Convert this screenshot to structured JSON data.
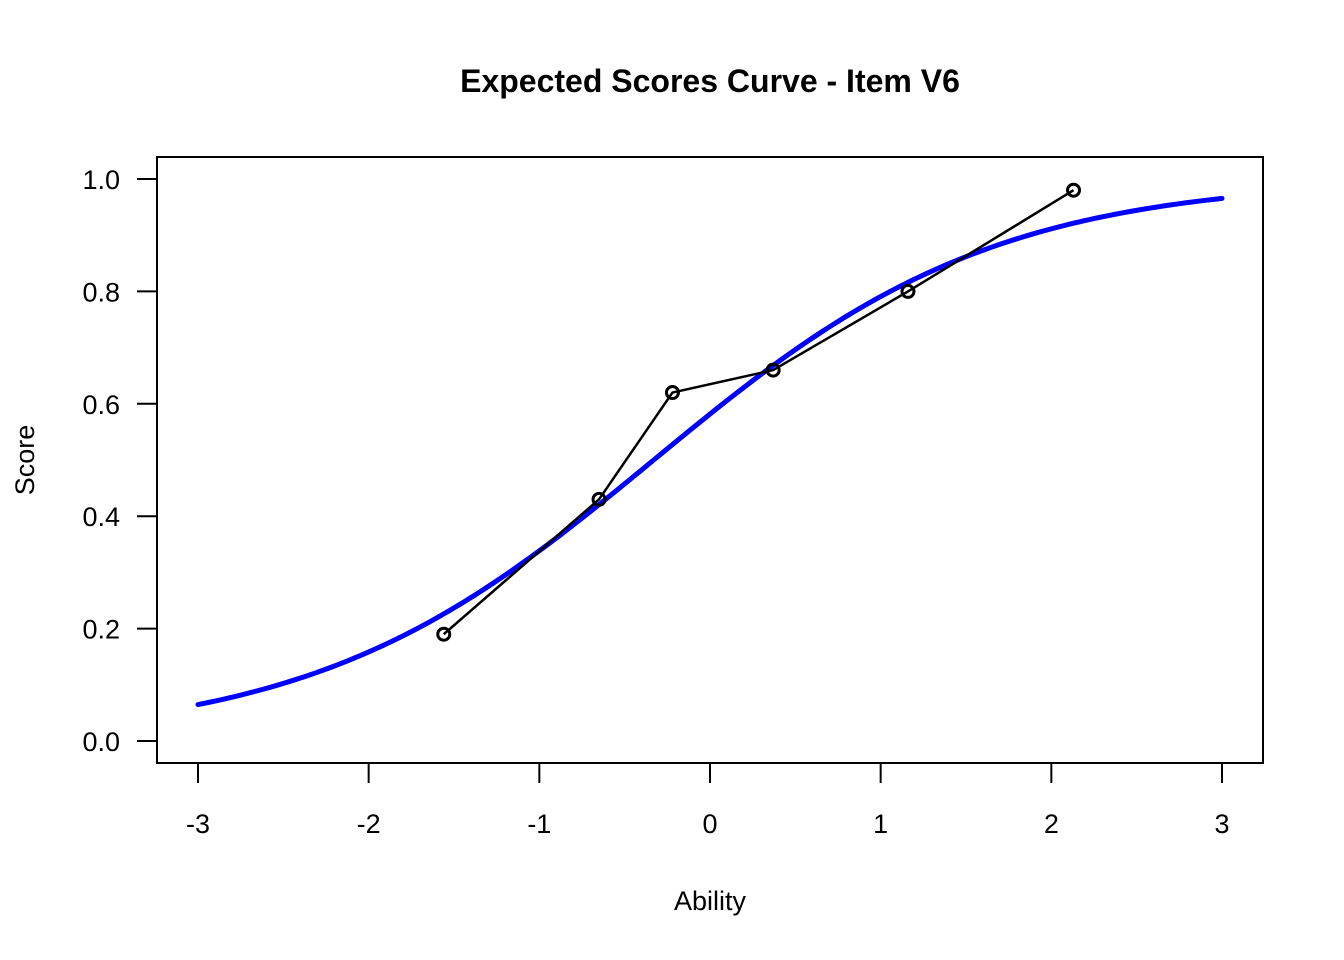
{
  "chart_data": {
    "type": "line",
    "title": "Expected Scores Curve - Item  V6",
    "xlabel": "Ability",
    "ylabel": "Score",
    "xlim": [
      -3,
      3
    ],
    "ylim": [
      0,
      1
    ],
    "x_ticks": [
      "-3",
      "-2",
      "-1",
      "0",
      "1",
      "2",
      "3"
    ],
    "y_ticks": [
      "0.0",
      "0.2",
      "0.4",
      "0.6",
      "0.8",
      "1.0"
    ],
    "grid": false,
    "legend": "none",
    "series": [
      {
        "kind": "curve",
        "color": "#0000ff",
        "function": "logistic",
        "a": 1.0,
        "b": -0.33,
        "x_range": [
          -3,
          3
        ]
      },
      {
        "kind": "points",
        "color": "#000000",
        "marker": "circle",
        "x": [
          -1.56,
          -0.65,
          -0.22,
          0.37,
          1.16,
          2.13
        ],
        "y": [
          0.19,
          0.43,
          0.62,
          0.66,
          0.8,
          0.98
        ]
      }
    ]
  }
}
